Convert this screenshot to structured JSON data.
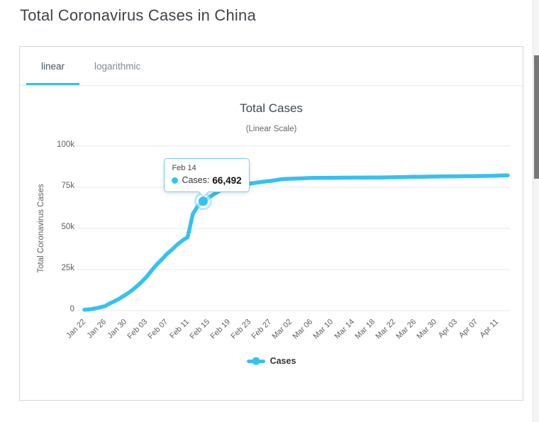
{
  "page": {
    "title": "Total Coronavirus Cases in China"
  },
  "tabs": [
    {
      "label": "linear",
      "active": true
    },
    {
      "label": "logarithmic",
      "active": false
    }
  ],
  "chart_data": {
    "type": "line",
    "title": "Total Cases",
    "subtitle": "(Linear Scale)",
    "xlabel": "",
    "ylabel": "Total Coronavirus Cases",
    "ylim": [
      0,
      100000
    ],
    "grid": true,
    "legend_position": "bottom",
    "yticks": [
      {
        "value": 0,
        "label": "0"
      },
      {
        "value": 25000,
        "label": "25k"
      },
      {
        "value": 50000,
        "label": "50k"
      },
      {
        "value": 75000,
        "label": "75k"
      },
      {
        "value": 100000,
        "label": "100k"
      }
    ],
    "x_tick_interval": 4,
    "xtick_labels": [
      "Jan 22",
      "Jan 26",
      "Jan 30",
      "Feb 03",
      "Feb 07",
      "Feb 11",
      "Feb 15",
      "Feb 19",
      "Feb 23",
      "Feb 27",
      "Mar 02",
      "Mar 06",
      "Mar 10",
      "Mar 14",
      "Mar 18",
      "Mar 22",
      "Mar 26",
      "Mar 30",
      "Apr 03",
      "Apr 07",
      "Apr 11"
    ],
    "x": [
      "Jan 22",
      "Jan 23",
      "Jan 24",
      "Jan 25",
      "Jan 26",
      "Jan 27",
      "Jan 28",
      "Jan 29",
      "Jan 30",
      "Jan 31",
      "Feb 01",
      "Feb 02",
      "Feb 03",
      "Feb 04",
      "Feb 05",
      "Feb 06",
      "Feb 07",
      "Feb 08",
      "Feb 09",
      "Feb 10",
      "Feb 11",
      "Feb 12",
      "Feb 13",
      "Feb 14",
      "Feb 15",
      "Feb 16",
      "Feb 17",
      "Feb 18",
      "Feb 19",
      "Feb 20",
      "Feb 21",
      "Feb 22",
      "Feb 23",
      "Feb 24",
      "Feb 25",
      "Feb 26",
      "Feb 27",
      "Feb 28",
      "Feb 29",
      "Mar 01",
      "Mar 02",
      "Mar 03",
      "Mar 04",
      "Mar 05",
      "Mar 06",
      "Mar 07",
      "Mar 08",
      "Mar 09",
      "Mar 10",
      "Mar 11",
      "Mar 12",
      "Mar 13",
      "Mar 14",
      "Mar 15",
      "Mar 16",
      "Mar 17",
      "Mar 18",
      "Mar 19",
      "Mar 20",
      "Mar 21",
      "Mar 22",
      "Mar 23",
      "Mar 24",
      "Mar 25",
      "Mar 26",
      "Mar 27",
      "Mar 28",
      "Mar 29",
      "Mar 30",
      "Mar 31",
      "Apr 01",
      "Apr 02",
      "Apr 03",
      "Apr 04",
      "Apr 05",
      "Apr 06",
      "Apr 07",
      "Apr 08",
      "Apr 09",
      "Apr 10",
      "Apr 11",
      "Apr 12",
      "Apr 13"
    ],
    "series": [
      {
        "name": "Cases",
        "color": "#35c1f1",
        "values": [
          571,
          830,
          1287,
          1975,
          2744,
          4515,
          5974,
          7711,
          9692,
          11791,
          14380,
          17205,
          20438,
          24324,
          28018,
          31161,
          34546,
          37198,
          40171,
          42638,
          44653,
          58761,
          63851,
          66492,
          68500,
          70548,
          72436,
          74185,
          74576,
          75465,
          76288,
          76936,
          77150,
          77658,
          78064,
          78497,
          78824,
          79251,
          79824,
          80026,
          80151,
          80270,
          80409,
          80552,
          80651,
          80695,
          80735,
          80754,
          80778,
          80793,
          80813,
          80824,
          80844,
          80860,
          80881,
          80894,
          80928,
          80967,
          81008,
          81054,
          81093,
          81171,
          81218,
          81285,
          81340,
          81394,
          81439,
          81470,
          81518,
          81554,
          81589,
          81620,
          81639,
          81669,
          81708,
          81740,
          81802,
          81865,
          81907,
          81953,
          82052,
          82160,
          82249
        ]
      }
    ]
  },
  "tooltip": {
    "date": "Feb 14",
    "series_label": "Cases:",
    "value": "66,492",
    "point_index": 23
  },
  "legend": {
    "label": "Cases"
  },
  "colors": {
    "accent": "#35c1f1",
    "tab_underline": "#2ec1f0",
    "grid": "#e7e7e7",
    "axis_text": "#606060",
    "title_text": "#41494f"
  }
}
